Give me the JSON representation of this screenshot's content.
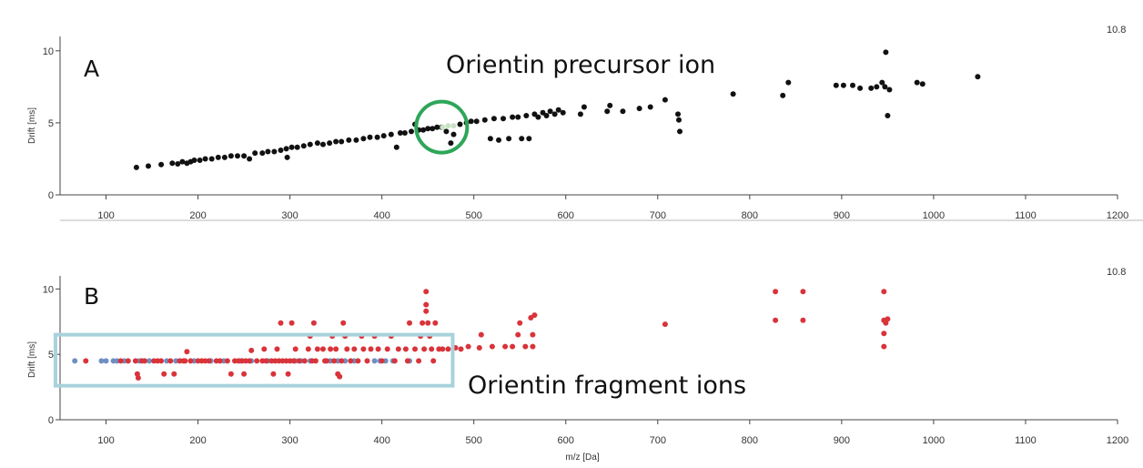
{
  "chart_data": [
    {
      "type": "scatter",
      "panel_label": "A",
      "xlabel": "",
      "ylabel": "Drift [ms]",
      "corner_value": "10.8",
      "xlim": [
        50,
        1200
      ],
      "ylim": [
        0,
        11
      ],
      "x_ticks": [
        100,
        200,
        300,
        400,
        500,
        600,
        700,
        800,
        900,
        1000,
        1100,
        1200
      ],
      "y_ticks": [
        0,
        5,
        10
      ],
      "annotation": "Orientin precursor ion",
      "highlight": {
        "shape": "circle",
        "x": 465,
        "y": 4.7,
        "color": "#2ea65a"
      },
      "series": [
        {
          "color": "#111111",
          "points": [
            [
              133,
              1.9
            ],
            [
              146,
              2.0
            ],
            [
              160,
              2.1
            ],
            [
              172,
              2.2
            ],
            [
              178,
              2.15
            ],
            [
              183,
              2.3
            ],
            [
              188,
              2.2
            ],
            [
              192,
              2.3
            ],
            [
              196,
              2.4
            ],
            [
              202,
              2.4
            ],
            [
              208,
              2.5
            ],
            [
              215,
              2.5
            ],
            [
              222,
              2.6
            ],
            [
              229,
              2.6
            ],
            [
              236,
              2.7
            ],
            [
              243,
              2.7
            ],
            [
              250,
              2.7
            ],
            [
              256,
              2.5
            ],
            [
              262,
              2.9
            ],
            [
              270,
              2.9
            ],
            [
              276,
              3.0
            ],
            [
              283,
              3.0
            ],
            [
              290,
              3.1
            ],
            [
              296,
              3.2
            ],
            [
              297,
              2.6
            ],
            [
              302,
              3.3
            ],
            [
              308,
              3.3
            ],
            [
              315,
              3.4
            ],
            [
              322,
              3.5
            ],
            [
              330,
              3.6
            ],
            [
              336,
              3.5
            ],
            [
              343,
              3.6
            ],
            [
              350,
              3.7
            ],
            [
              356,
              3.7
            ],
            [
              364,
              3.8
            ],
            [
              372,
              3.8
            ],
            [
              380,
              3.9
            ],
            [
              387,
              4.0
            ],
            [
              395,
              4.0
            ],
            [
              402,
              4.1
            ],
            [
              410,
              4.2
            ],
            [
              416,
              3.3
            ],
            [
              420,
              4.3
            ],
            [
              425,
              4.3
            ],
            [
              432,
              4.4
            ],
            [
              436,
              4.9
            ],
            [
              440,
              4.5
            ],
            [
              445,
              4.5
            ],
            [
              450,
              4.6
            ],
            [
              455,
              4.6
            ],
            [
              460,
              4.7
            ],
            [
              465,
              4.7
            ],
            [
              470,
              4.4
            ],
            [
              475,
              3.6
            ],
            [
              478,
              4.2
            ],
            [
              485,
              4.9
            ],
            [
              492,
              5.0
            ],
            [
              497,
              5.1
            ],
            [
              503,
              5.1
            ],
            [
              512,
              5.2
            ],
            [
              518,
              3.9
            ],
            [
              522,
              5.3
            ],
            [
              527,
              3.8
            ],
            [
              532,
              5.3
            ],
            [
              538,
              3.9
            ],
            [
              542,
              5.4
            ],
            [
              548,
              5.4
            ],
            [
              552,
              3.9
            ],
            [
              557,
              5.5
            ],
            [
              560,
              3.9
            ],
            [
              566,
              5.6
            ],
            [
              570,
              5.4
            ],
            [
              575,
              5.7
            ],
            [
              579,
              5.5
            ],
            [
              583,
              5.8
            ],
            [
              588,
              5.6
            ],
            [
              592,
              5.9
            ],
            [
              597,
              5.7
            ],
            [
              616,
              5.6
            ],
            [
              620,
              6.1
            ],
            [
              645,
              5.8
            ],
            [
              648,
              6.2
            ],
            [
              662,
              5.8
            ],
            [
              680,
              6.0
            ],
            [
              692,
              6.1
            ],
            [
              708,
              6.6
            ],
            [
              722,
              5.6
            ],
            [
              723,
              5.2
            ],
            [
              724,
              4.4
            ],
            [
              782,
              7.0
            ],
            [
              836,
              6.9
            ],
            [
              842,
              7.8
            ],
            [
              894,
              7.6
            ],
            [
              902,
              7.6
            ],
            [
              912,
              7.6
            ],
            [
              920,
              7.4
            ],
            [
              932,
              7.4
            ],
            [
              938,
              7.5
            ],
            [
              944,
              7.8
            ],
            [
              947,
              7.5
            ],
            [
              948,
              9.9
            ],
            [
              950,
              5.5
            ],
            [
              952,
              7.3
            ],
            [
              982,
              7.8
            ],
            [
              988,
              7.7
            ],
            [
              1048,
              8.2
            ]
          ]
        },
        {
          "color": "#c8e2c4",
          "points": [
            [
              466,
              4.7
            ],
            [
              472,
              4.8
            ],
            [
              478,
              4.8
            ]
          ]
        }
      ]
    },
    {
      "type": "scatter",
      "panel_label": "B",
      "xlabel": "m/z [Da]",
      "ylabel": "Drift [ms]",
      "corner_value": "10.8",
      "xlim": [
        50,
        1200
      ],
      "ylim": [
        0,
        11
      ],
      "x_ticks": [
        100,
        200,
        300,
        400,
        500,
        600,
        700,
        800,
        900,
        1000,
        1100,
        1200
      ],
      "y_ticks": [
        0,
        5,
        10
      ],
      "annotation": "Orientin fragment ions",
      "highlight": {
        "shape": "rectangle",
        "x": [
          45,
          477
        ],
        "y": [
          2.6,
          6.5
        ],
        "color": "#a8d2dc"
      },
      "series": [
        {
          "color": "#6f8fc2",
          "points": [
            [
              66,
              4.5
            ],
            [
              95,
              4.5
            ],
            [
              100,
              4.5
            ],
            [
              108,
              4.5
            ],
            [
              112,
              4.5
            ],
            [
              120,
              4.5
            ],
            [
              136,
              4.5
            ],
            [
              147,
              4.5
            ],
            [
              166,
              4.5
            ],
            [
              176,
              4.5
            ],
            [
              196,
              4.5
            ],
            [
              214,
              4.5
            ],
            [
              228,
              4.5
            ],
            [
              246,
              4.5
            ],
            [
              258,
              4.5
            ],
            [
              276,
              4.5
            ],
            [
              306,
              4.5
            ],
            [
              312,
              4.5
            ],
            [
              322,
              4.5
            ],
            [
              344,
              4.5
            ],
            [
              352,
              4.5
            ],
            [
              360,
              4.5
            ],
            [
              370,
              4.5
            ],
            [
              392,
              4.5
            ],
            [
              398,
              4.5
            ],
            [
              404,
              4.5
            ],
            [
              412,
              4.5
            ],
            [
              430,
              4.5
            ]
          ]
        },
        {
          "color": "#d8343a",
          "points": [
            [
              78,
              4.5
            ],
            [
              116,
              4.5
            ],
            [
              124,
              4.5
            ],
            [
              132,
              4.5
            ],
            [
              134,
              3.5
            ],
            [
              135,
              3.2
            ],
            [
              139,
              4.5
            ],
            [
              142,
              4.5
            ],
            [
              152,
              4.5
            ],
            [
              156,
              4.5
            ],
            [
              160,
              4.5
            ],
            [
              163,
              3.5
            ],
            [
              170,
              4.5
            ],
            [
              174,
              3.5
            ],
            [
              180,
              4.5
            ],
            [
              184,
              4.5
            ],
            [
              186,
              4.5
            ],
            [
              188,
              5.2
            ],
            [
              192,
              4.5
            ],
            [
              200,
              4.5
            ],
            [
              204,
              4.5
            ],
            [
              208,
              4.5
            ],
            [
              212,
              4.5
            ],
            [
              220,
              4.5
            ],
            [
              224,
              4.5
            ],
            [
              232,
              4.5
            ],
            [
              236,
              3.5
            ],
            [
              240,
              4.5
            ],
            [
              244,
              4.5
            ],
            [
              248,
              4.5
            ],
            [
              250,
              3.5
            ],
            [
              252,
              4.5
            ],
            [
              256,
              4.5
            ],
            [
              258,
              5.3
            ],
            [
              264,
              4.5
            ],
            [
              270,
              4.5
            ],
            [
              272,
              5.4
            ],
            [
              274,
              4.5
            ],
            [
              280,
              4.5
            ],
            [
              282,
              3.5
            ],
            [
              284,
              4.5
            ],
            [
              286,
              5.4
            ],
            [
              288,
              4.5
            ],
            [
              290,
              7.4
            ],
            [
              292,
              4.5
            ],
            [
              296,
              4.5
            ],
            [
              298,
              3.5
            ],
            [
              300,
              4.5
            ],
            [
              302,
              7.4
            ],
            [
              304,
              4.5
            ],
            [
              306,
              5.4
            ],
            [
              310,
              4.5
            ],
            [
              316,
              4.5
            ],
            [
              320,
              5.4
            ],
            [
              322,
              6.4
            ],
            [
              324,
              4.5
            ],
            [
              326,
              7.4
            ],
            [
              328,
              4.5
            ],
            [
              330,
              5.4
            ],
            [
              336,
              5.4
            ],
            [
              338,
              4.5
            ],
            [
              340,
              4.5
            ],
            [
              344,
              5.4
            ],
            [
              346,
              6.4
            ],
            [
              348,
              4.5
            ],
            [
              350,
              5.4
            ],
            [
              352,
              3.5
            ],
            [
              354,
              3.3
            ],
            [
              356,
              4.5
            ],
            [
              358,
              7.4
            ],
            [
              360,
              6.4
            ],
            [
              362,
              5.4
            ],
            [
              366,
              4.5
            ],
            [
              370,
              5.4
            ],
            [
              374,
              4.5
            ],
            [
              378,
              6.4
            ],
            [
              380,
              5.4
            ],
            [
              384,
              4.5
            ],
            [
              388,
              5.4
            ],
            [
              392,
              6.4
            ],
            [
              396,
              5.4
            ],
            [
              400,
              4.5
            ],
            [
              406,
              5.4
            ],
            [
              410,
              6.4
            ],
            [
              414,
              4.5
            ],
            [
              418,
              5.4
            ],
            [
              426,
              5.4
            ],
            [
              428,
              4.5
            ],
            [
              430,
              7.4
            ],
            [
              436,
              5.4
            ],
            [
              440,
              4.5
            ],
            [
              442,
              6.4
            ],
            [
              444,
              7.4
            ],
            [
              446,
              5.4
            ],
            [
              448,
              9.8
            ],
            [
              448,
              8.8
            ],
            [
              448,
              8.3
            ],
            [
              450,
              7.4
            ],
            [
              452,
              6.4
            ],
            [
              454,
              5.4
            ],
            [
              456,
              4.5
            ],
            [
              458,
              7.4
            ],
            [
              462,
              5.4
            ],
            [
              466,
              5.4
            ],
            [
              472,
              5.4
            ],
            [
              480,
              5.5
            ],
            [
              486,
              5.4
            ],
            [
              494,
              5.6
            ],
            [
              506,
              5.5
            ],
            [
              508,
              6.5
            ],
            [
              520,
              5.6
            ],
            [
              534,
              5.6
            ],
            [
              542,
              5.6
            ],
            [
              548,
              6.5
            ],
            [
              550,
              7.4
            ],
            [
              556,
              5.6
            ],
            [
              562,
              7.8
            ],
            [
              564,
              5.6
            ],
            [
              564,
              6.5
            ],
            [
              566,
              8.0
            ],
            [
              708,
              7.3
            ],
            [
              828,
              9.8
            ],
            [
              828,
              7.6
            ],
            [
              858,
              9.8
            ],
            [
              858,
              7.6
            ],
            [
              946,
              9.8
            ],
            [
              946,
              7.6
            ],
            [
              946,
              6.6
            ],
            [
              946,
              5.6
            ],
            [
              948,
              7.4
            ],
            [
              950,
              7.7
            ]
          ]
        }
      ]
    }
  ]
}
